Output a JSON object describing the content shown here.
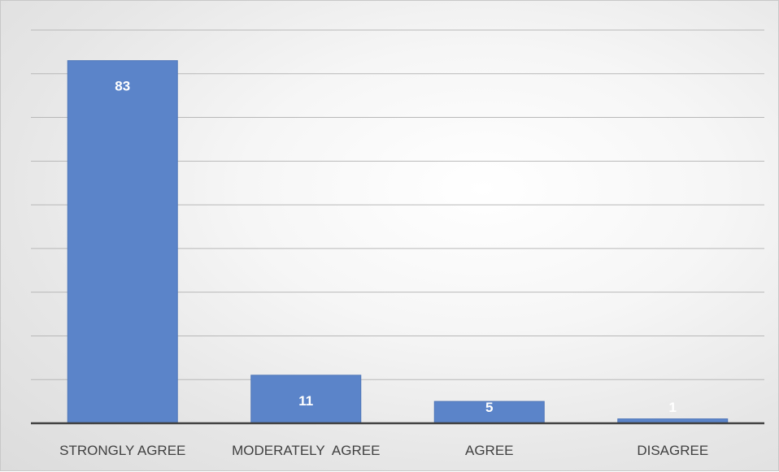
{
  "chart_data": {
    "type": "bar",
    "title": "",
    "xlabel": "",
    "ylabel": "",
    "categories": [
      "STRONGLY AGREE",
      "MODERATELY  AGREE",
      "AGREE",
      "DISAGREE"
    ],
    "values": [
      83,
      11,
      5,
      1
    ],
    "ylim": [
      0,
      90
    ],
    "grid": true,
    "legend": "none",
    "colors": {
      "bar": "#5b84c9",
      "bar_stroke": "#4f76b8",
      "gridline": "#b8b8b8",
      "axis": "#404040",
      "label": "#404040",
      "data_label": "#ffffff"
    }
  }
}
